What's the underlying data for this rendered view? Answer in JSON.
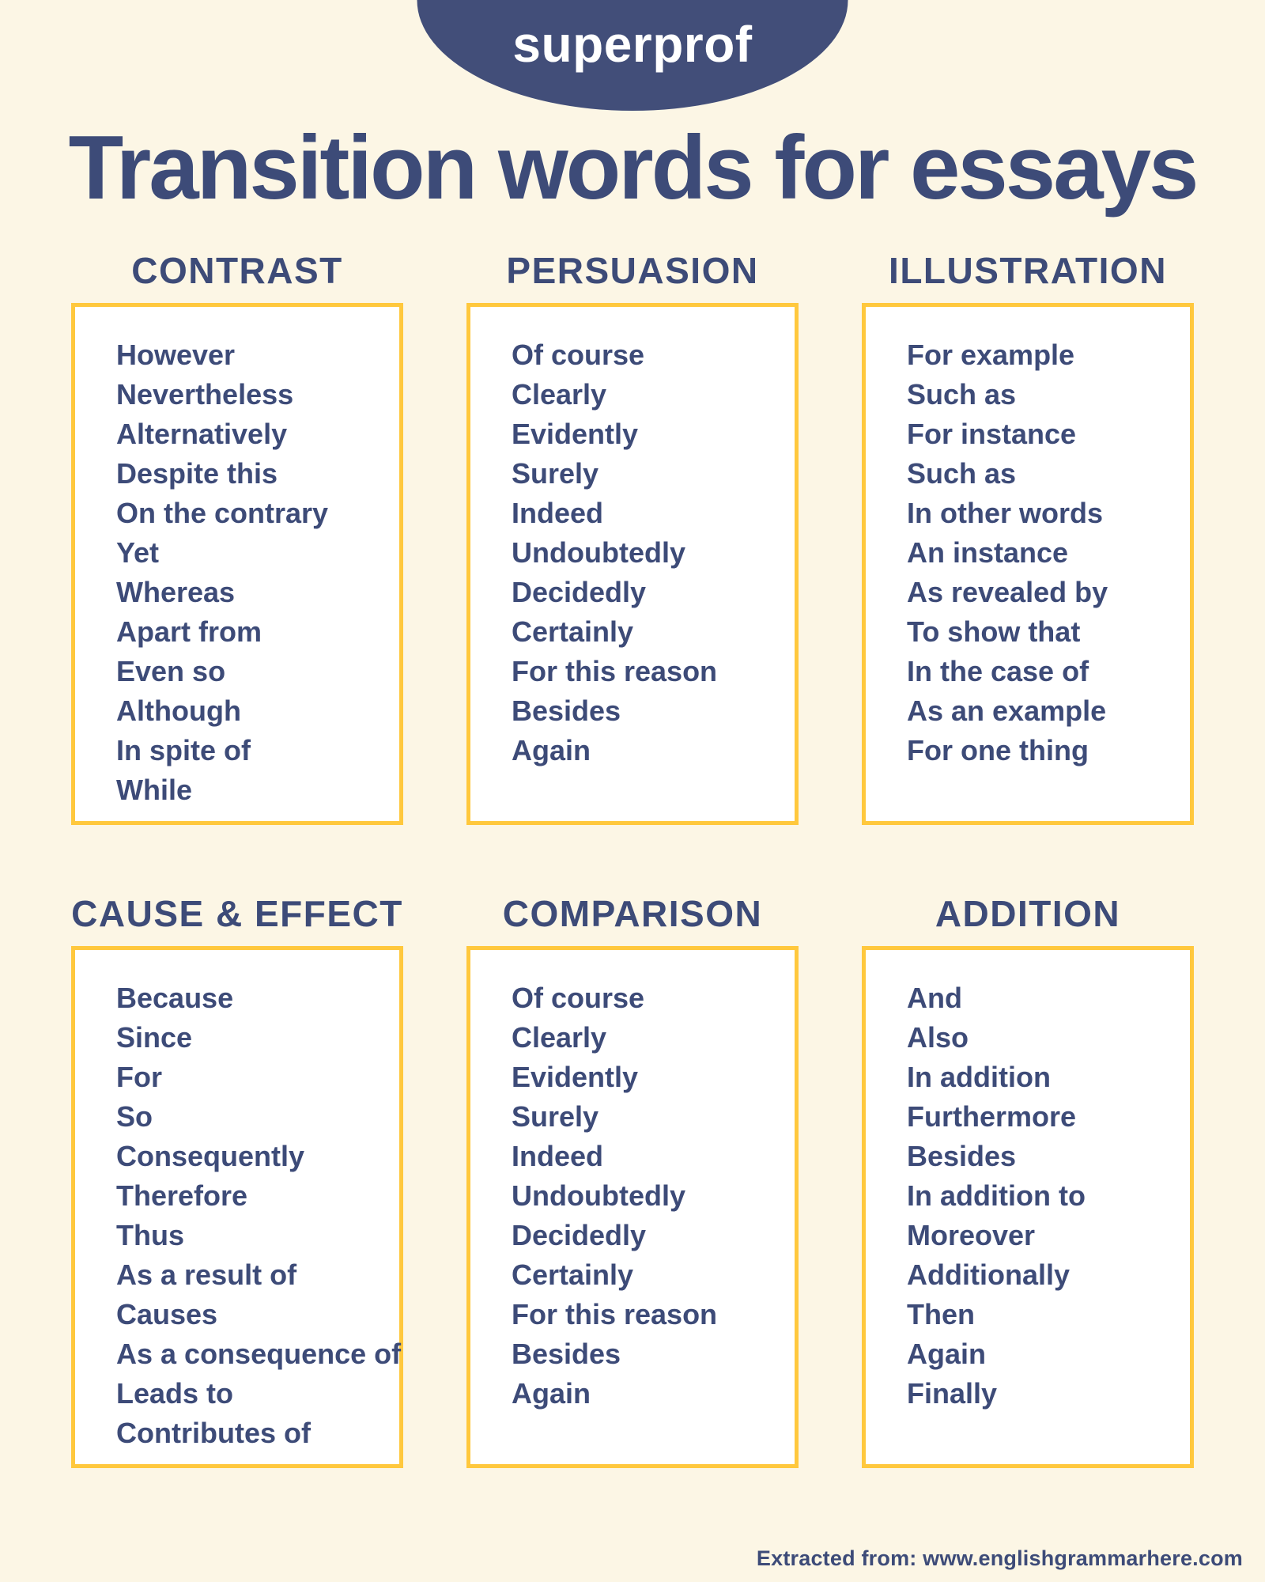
{
  "logo": {
    "text": "superprof"
  },
  "title": "Transition words for essays",
  "colors": {
    "background": "#FCF6E5",
    "navy": "#3D4B78",
    "ellipse_navy": "#424E79",
    "box_border_yellow": "#FFC83D",
    "box_fill": "#FFFFFF",
    "logo_text": "#FFFFFF"
  },
  "categories": [
    {
      "label": "CONTRAST",
      "words": [
        "However",
        "Nevertheless",
        "Alternatively",
        "Despite this",
        "On the contrary",
        "Yet",
        "Whereas",
        "Apart from",
        "Even so",
        "Although",
        "In spite of",
        "While"
      ]
    },
    {
      "label": "PERSUASION",
      "words": [
        "Of course",
        "Clearly",
        "Evidently",
        "Surely",
        "Indeed",
        "Undoubtedly",
        "Decidedly",
        "Certainly",
        "For this reason",
        "Besides",
        "Again"
      ]
    },
    {
      "label": "ILLUSTRATION",
      "words": [
        "For example",
        "Such as",
        "For instance",
        "Such as",
        "In other words",
        "An instance",
        "As revealed by",
        "To show that",
        "In the case of",
        "As an example",
        "For one thing"
      ]
    },
    {
      "label": "CAUSE & EFFECT",
      "words": [
        "Because",
        "Since",
        "For",
        "So",
        "Consequently",
        "Therefore",
        "Thus",
        "As a result of",
        "Causes",
        "As a consequence of",
        "Leads to",
        "Contributes of"
      ]
    },
    {
      "label": "COMPARISON",
      "words": [
        "Of course",
        "Clearly",
        "Evidently",
        "Surely",
        "Indeed",
        "Undoubtedly",
        "Decidedly",
        "Certainly",
        "For this reason",
        "Besides",
        "Again"
      ]
    },
    {
      "label": "ADDITION",
      "words": [
        "And",
        "Also",
        "In addition",
        "Furthermore",
        "Besides",
        "In addition to",
        "Moreover",
        "Additionally",
        "Then",
        "Again",
        "Finally"
      ]
    }
  ],
  "footer": {
    "text": "Extracted from: www.englishgrammarhere.com"
  }
}
